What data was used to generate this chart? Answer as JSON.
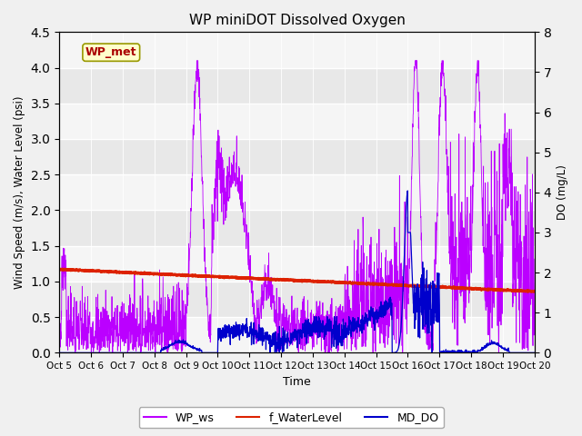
{
  "title": "WP miniDOT Dissolved Oxygen",
  "xlabel": "Time",
  "ylabel_left": "Wind Speed (m/s), Water Level (psi)",
  "ylabel_right": "DO (mg/L)",
  "annotation_text": "WP_met",
  "annotation_color": "#aa0000",
  "annotation_bg": "#ffffcc",
  "annotation_border": "#999900",
  "ylim_left": [
    0.0,
    4.5
  ],
  "ylim_right": [
    0.0,
    8.0
  ],
  "yticks_left": [
    0.0,
    0.5,
    1.0,
    1.5,
    2.0,
    2.5,
    3.0,
    3.5,
    4.0,
    4.5
  ],
  "yticks_right": [
    0.0,
    1.0,
    2.0,
    3.0,
    4.0,
    5.0,
    6.0,
    7.0,
    8.0
  ],
  "xtick_labels": [
    "Oct 5",
    "Oct 6",
    "Oct 7",
    "Oct 8",
    "Oct 9",
    "Oct 10",
    "Oct 11",
    "Oct 12",
    "Oct 13",
    "Oct 14",
    "Oct 15",
    "Oct 16",
    "Oct 17",
    "Oct 18",
    "Oct 19",
    "Oct 20"
  ],
  "wp_ws_color": "#bb00ff",
  "f_waterlevel_color": "#dd2200",
  "md_do_color": "#0000cc",
  "legend_labels": [
    "WP_ws",
    "f_WaterLevel",
    "MD_DO"
  ],
  "legend_colors": [
    "#bb00ff",
    "#dd2200",
    "#0000cc"
  ],
  "band_colors": [
    "#e8e8e8",
    "#d8d8d8"
  ],
  "fig_facecolor": "#f0f0f0"
}
